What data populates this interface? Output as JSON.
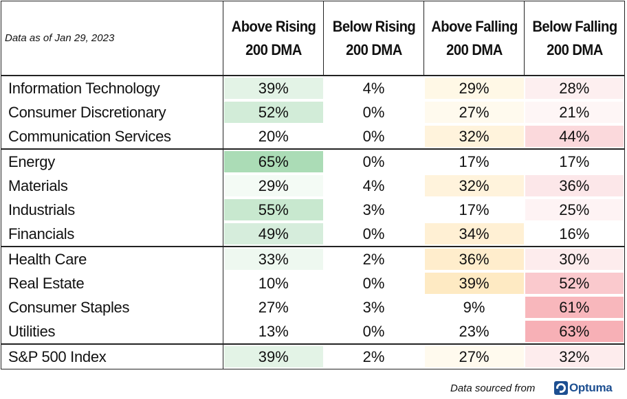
{
  "as_of": "Data as of Jan 29, 2023",
  "columns": [
    {
      "line1": "Above Rising",
      "line2": "200 DMA"
    },
    {
      "line1": "Below Rising",
      "line2": "200 DMA"
    },
    {
      "line1": "Above Falling",
      "line2": "200 DMA"
    },
    {
      "line1": "Below Falling",
      "line2": "200 DMA"
    }
  ],
  "rows": [
    {
      "label": "Information Technology",
      "values": [
        "39%",
        "4%",
        "29%",
        "28%"
      ],
      "colors": [
        "#e3f3e6",
        "",
        "#fff8e6",
        "#fdeff0"
      ],
      "group_start": false
    },
    {
      "label": "Consumer Discretionary",
      "values": [
        "52%",
        "0%",
        "27%",
        "21%"
      ],
      "colors": [
        "#d2ecd8",
        "",
        "#fffaee",
        "#fef6f6"
      ],
      "group_start": false
    },
    {
      "label": "Communication Services",
      "values": [
        "20%",
        "0%",
        "32%",
        "44%"
      ],
      "colors": [
        "",
        "",
        "#fff3dc",
        "#fbd9dc"
      ],
      "group_start": false
    },
    {
      "label": "Energy",
      "values": [
        "65%",
        "0%",
        "17%",
        "17%"
      ],
      "colors": [
        "#abdcb6",
        "",
        "",
        ""
      ],
      "group_start": true
    },
    {
      "label": "Materials",
      "values": [
        "29%",
        "4%",
        "32%",
        "36%"
      ],
      "colors": [
        "#f4fbf5",
        "",
        "#fff3dc",
        "#fce7e9"
      ],
      "group_start": false
    },
    {
      "label": "Industrials",
      "values": [
        "55%",
        "3%",
        "17%",
        "25%"
      ],
      "colors": [
        "#c8e8cf",
        "",
        "",
        "#fef3f4"
      ],
      "group_start": false
    },
    {
      "label": "Financials",
      "values": [
        "49%",
        "0%",
        "34%",
        "16%"
      ],
      "colors": [
        "#d6eddc",
        "",
        "#fff0d4",
        ""
      ],
      "group_start": false
    },
    {
      "label": "Health Care",
      "values": [
        "33%",
        "2%",
        "36%",
        "30%"
      ],
      "colors": [
        "#eef8f0",
        "",
        "#ffedcc",
        "#fdeced"
      ],
      "group_start": true
    },
    {
      "label": "Real Estate",
      "values": [
        "10%",
        "0%",
        "39%",
        "52%"
      ],
      "colors": [
        "",
        "",
        "#feeac3",
        "#fac9cd"
      ],
      "group_start": false
    },
    {
      "label": "Consumer Staples",
      "values": [
        "27%",
        "3%",
        "9%",
        "61%"
      ],
      "colors": [
        "",
        "",
        "",
        "#f8b7bc"
      ],
      "group_start": false
    },
    {
      "label": "Utilities",
      "values": [
        "13%",
        "0%",
        "23%",
        "63%"
      ],
      "colors": [
        "",
        "",
        "",
        "#f7b0b6"
      ],
      "group_start": false
    },
    {
      "label": "S&P 500 Index",
      "values": [
        "39%",
        "2%",
        "27%",
        "32%"
      ],
      "colors": [
        "#e3f3e6",
        "",
        "#fffaee",
        "#fdeced"
      ],
      "group_start": true
    }
  ],
  "footer": {
    "source_text": "Data sourced from",
    "brand": "Optuma",
    "brand_color": "#1d4f91"
  }
}
